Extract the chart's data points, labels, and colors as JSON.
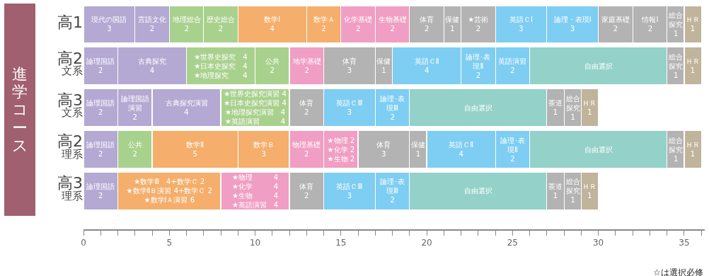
{
  "chart_data": {
    "type": "bar",
    "orientation": "horizontal",
    "stacked": true,
    "ylabel": "進学コース",
    "categories": [
      "高1",
      "高2\n文系",
      "高3\n文系",
      "高2\n理系",
      "高3\n理系"
    ],
    "xlim": [
      0,
      36.2
    ],
    "xticks": [
      0,
      {
        "value": 1,
        "label": null
      },
      {
        "value": 2,
        "label": null
      },
      {
        "value": 3,
        "label": null
      },
      {
        "value": 4,
        "label": null
      },
      5,
      {
        "value": 6,
        "label": null
      },
      {
        "value": 7,
        "label": null
      },
      {
        "value": 8,
        "label": null
      },
      {
        "value": 9,
        "label": null
      },
      10,
      {
        "value": 11,
        "label": null
      },
      {
        "value": 12,
        "label": null
      },
      {
        "value": 13,
        "label": null
      },
      {
        "value": 14,
        "label": null
      },
      15,
      {
        "value": 16,
        "label": null
      },
      {
        "value": 17,
        "label": null
      },
      {
        "value": 18,
        "label": null
      },
      {
        "value": 19,
        "label": null
      },
      20,
      {
        "value": 21,
        "label": null
      },
      {
        "value": 22,
        "label": null
      },
      {
        "value": 23,
        "label": null
      },
      {
        "value": 24,
        "label": null
      },
      25,
      {
        "value": 26,
        "label": null
      },
      {
        "value": 27,
        "label": null
      },
      {
        "value": 28,
        "label": null
      },
      {
        "value": 29,
        "label": null
      },
      30,
      {
        "value": 31,
        "label": null
      },
      {
        "value": 32,
        "label": null
      },
      {
        "value": 33,
        "label": null
      },
      {
        "value": 34,
        "label": null
      },
      35,
      {
        "value": 36,
        "label": null
      }
    ],
    "grid": false,
    "annotations": [
      "☆は選択必修"
    ],
    "series": [
      {
        "values": [
          3,
          2,
          2,
          2,
          2
        ],
        "colors": [
          "#b3a9d2",
          "#b3a9d2",
          "#b3a9d2",
          "#b3a9d2",
          "#b3a9d2"
        ],
        "value_labels": [
          "現代の国語\n3",
          "論理国語\n2",
          "論理国語\n2",
          "論理国語\n2",
          "論理国語\n2"
        ]
      },
      {
        "values": [
          2,
          4,
          2,
          2,
          6
        ],
        "colors": [
          "#b3a9d2",
          "#b3a9d2",
          "#b3a9d2",
          "#a9d18e",
          "#f5ae6b"
        ],
        "value_labels": [
          "言語文化\n2",
          "古典探究\n4",
          "論理国語演習\n2",
          "公共\n2",
          "★数学Ⅲ　4+数学Ｃ 2\n★数学ⅡＢ演習 4+数学Ｃ 2\n★数学ⅠＡ演習 6"
        ]
      },
      {
        "values": [
          2,
          4,
          4,
          5,
          4
        ],
        "colors": [
          "#a9d18e",
          "#a9d18e",
          "#b3a9d2",
          "#f5ae6b",
          "#f09ec3"
        ],
        "value_labels": [
          "地理総合\n2",
          "★世界史探究　4\n★日本史探究　4\n★地理探究　　4",
          "古典探究演習\n4",
          "数学Ⅱ\n5",
          "★物理　　　4\n★化学　　　4\n★生物　　　4\n★英語演習　4"
        ]
      },
      {
        "values": [
          2,
          2,
          4,
          3,
          2
        ],
        "colors": [
          "#a9d18e",
          "#a9d18e",
          "#a9d18e",
          "#f5ae6b",
          "#b3b3b3"
        ],
        "value_labels": [
          "歴史総合\n2",
          "公共\n2",
          "★世界史探究演習 4\n★日本史探究演習 4\n★地理探究演習　4\n★英語演習　　　4",
          "数学Ｂ\n3",
          "体育\n2"
        ]
      },
      {
        "values": [
          4,
          2,
          2,
          2,
          3
        ],
        "colors": [
          "#f5ae6b",
          "#f09ec3",
          "#b3b3b3",
          "#f09ec3",
          "#7ecdf2"
        ],
        "value_labels": [
          "数学Ⅰ\n4",
          "地学基礎\n2",
          "体育\n2",
          "物理基礎\n2",
          "英語ＣⅢ\n3"
        ]
      },
      {
        "values": [
          2,
          3,
          3,
          2,
          2
        ],
        "colors": [
          "#f5ae6b",
          "#b3b3b3",
          "#7ecdf2",
          "#f09ec3",
          "#7ecdf2"
        ],
        "value_labels": [
          "数学Ａ\n2",
          "体育\n3",
          "英語ＣⅢ\n3",
          "★物理 2\n★化学 2\n★生物 2",
          "論理･表現Ⅲ\n2"
        ]
      },
      {
        "values": [
          2,
          1,
          2,
          3,
          8
        ],
        "colors": [
          "#f09ec3",
          "#b3b3b3",
          "#7ecdf2",
          "#b3b3b3",
          "#94d1c8"
        ],
        "value_labels": [
          "化学基礎\n2",
          "保健\n1",
          "論理･表現Ⅲ\n2",
          "体育\n3",
          "自由選択"
        ]
      },
      {
        "values": [
          2,
          4,
          8,
          1,
          1
        ],
        "colors": [
          "#f09ec3",
          "#7ecdf2",
          "#94d1c8",
          "#b3b3b3",
          "#b3b3b3"
        ],
        "value_labels": [
          "生物基礎\n2",
          "英語ＣⅡ\n4",
          "自由選択",
          "保健\n1",
          "茶道\n1"
        ]
      },
      {
        "values": [
          2,
          2,
          1,
          4,
          1
        ],
        "colors": [
          "#b3b3b3",
          "#7ecdf2",
          "#b3b3b3",
          "#7ecdf2",
          "#b3b3b3"
        ],
        "value_labels": [
          "体育\n2",
          "論理･表現Ⅱ\n2",
          "茶道\n1",
          "英語ＣⅡ\n4",
          "総合探究\n1"
        ]
      },
      {
        "values": [
          1,
          2,
          1,
          2,
          1
        ],
        "colors": [
          "#b3b3b3",
          "#7ecdf2",
          "#b3b3b3",
          "#7ecdf2",
          "#c0b49b"
        ],
        "value_labels": [
          "保健\n1",
          "英語演習\n2",
          "総合探究\n1",
          "論理･表現Ⅱ\n2",
          "ＨＲ\n1"
        ]
      },
      {
        "values": [
          2,
          8,
          1,
          8,
          null
        ],
        "colors": [
          "#b3b3b3",
          "#94d1c8",
          "#c0b49b",
          "#94d1c8",
          "#c0b49b"
        ],
        "value_labels": [
          "★芸術\n2",
          "自由選択",
          "ＨＲ\n1",
          "自由選択",
          null
        ]
      },
      {
        "values": [
          3,
          1,
          null,
          1,
          null
        ],
        "colors": [
          "#7ecdf2",
          "#b3b3b3",
          "#b3b3b3",
          "#b3b3b3",
          "#b3b3b3"
        ],
        "value_labels": [
          "英語ＣⅠ\n3",
          "総合探究\n1",
          null,
          "総合探究\n1",
          null
        ]
      },
      {
        "values": [
          3,
          1,
          null,
          1,
          null
        ],
        "colors": [
          "#7ecdf2",
          "#c0b49b",
          "#c0b49b",
          "#c0b49b",
          "#c0b49b"
        ],
        "value_labels": [
          "論理・表現Ⅰ\n3",
          "ＨＲ\n1",
          null,
          "ＨＲ\n1",
          null
        ]
      },
      {
        "values": [
          2,
          null,
          null,
          null,
          null
        ],
        "colors": [
          "#b3b3b3",
          "#b3b3b3",
          "#b3b3b3",
          "#b3b3b3",
          "#b3b3b3"
        ],
        "value_labels": [
          "家庭基礎\n2",
          null,
          null,
          null,
          null
        ]
      },
      {
        "values": [
          2,
          null,
          null,
          null,
          null
        ],
        "colors": [
          "#b3b3b3",
          "#b3b3b3",
          "#b3b3b3",
          "#b3b3b3",
          "#b3b3b3"
        ],
        "value_labels": [
          "情報Ⅰ\n2",
          null,
          null,
          null,
          null
        ]
      },
      {
        "values": [
          1,
          null,
          null,
          null,
          null
        ],
        "colors": [
          "#b3b3b3",
          "#b3b3b3",
          "#b3b3b3",
          "#b3b3b3",
          "#b3b3b3"
        ],
        "value_labels": [
          "総合探究\n1",
          null,
          null,
          null,
          null
        ]
      },
      {
        "values": [
          1,
          null,
          null,
          null,
          null
        ],
        "colors": [
          "#c0b49b",
          "#c0b49b",
          "#c0b49b",
          "#c0b49b",
          "#c0b49b"
        ],
        "value_labels": [
          "ＨＲ\n1",
          null,
          null,
          null,
          null
        ]
      }
    ]
  }
}
